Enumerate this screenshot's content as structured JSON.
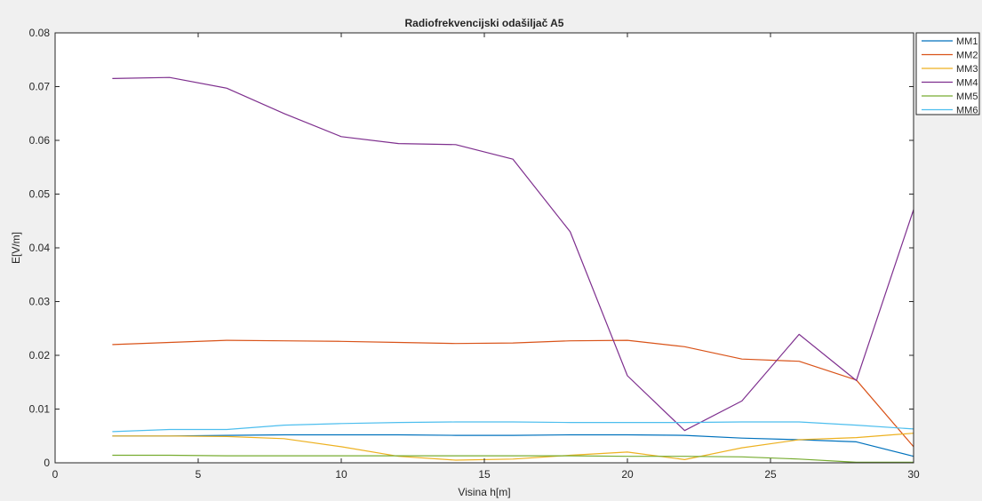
{
  "chart_data": {
    "type": "line",
    "title": "Radiofrekvencijski odašiljač A5",
    "xlabel": "Visina h[m]",
    "ylabel": "E[V/m]",
    "xlim": [
      0,
      30
    ],
    "ylim": [
      0,
      0.08
    ],
    "xticks": [
      0,
      5,
      10,
      15,
      20,
      25,
      30
    ],
    "xtick_labels": [
      "0",
      "5",
      "10",
      "15",
      "20",
      "25",
      "30"
    ],
    "yticks": [
      0,
      0.01,
      0.02,
      0.03,
      0.04,
      0.05,
      0.06,
      0.07,
      0.08
    ],
    "ytick_labels": [
      "0",
      "0.01",
      "0.02",
      "0.03",
      "0.04",
      "0.05",
      "0.06",
      "0.07",
      "0.08"
    ],
    "grid": false,
    "legend_position": "top-right, outside plot",
    "x": [
      2,
      4,
      6,
      8,
      10,
      12,
      14,
      16,
      18,
      20,
      22,
      24,
      26,
      28,
      30
    ],
    "series": [
      {
        "name": "MM1",
        "color": "#0072BD",
        "values": [
          0.005,
          0.005,
          0.0051,
          0.0052,
          0.0052,
          0.0052,
          0.0051,
          0.0051,
          0.0052,
          0.0052,
          0.0051,
          0.0046,
          0.0043,
          0.0039,
          0.0012
        ]
      },
      {
        "name": "MM2",
        "color": "#D95319",
        "values": [
          0.022,
          0.0224,
          0.0228,
          0.0227,
          0.0226,
          0.0224,
          0.0222,
          0.0223,
          0.0227,
          0.0228,
          0.0216,
          0.0193,
          0.0189,
          0.0154,
          0.003
        ]
      },
      {
        "name": "MM3",
        "color": "#EDB120",
        "values": [
          0.005,
          0.005,
          0.0049,
          0.0045,
          0.003,
          0.0012,
          0.0005,
          0.0007,
          0.0014,
          0.002,
          0.0006,
          0.0028,
          0.0043,
          0.0047,
          0.0055
        ]
      },
      {
        "name": "MM4",
        "color": "#7E2F8E",
        "values": [
          0.0715,
          0.0717,
          0.0697,
          0.065,
          0.0607,
          0.0594,
          0.0592,
          0.0565,
          0.043,
          0.0162,
          0.006,
          0.0115,
          0.0239,
          0.0153,
          0.0471
        ]
      },
      {
        "name": "MM5",
        "color": "#77AC30",
        "values": [
          0.0014,
          0.0014,
          0.0013,
          0.0013,
          0.0013,
          0.0013,
          0.0013,
          0.0013,
          0.0013,
          0.0012,
          0.0012,
          0.0011,
          0.0007,
          0.0001,
          0.0001
        ]
      },
      {
        "name": "MM6",
        "color": "#4DBEEE",
        "values": [
          0.0058,
          0.0062,
          0.0062,
          0.007,
          0.0073,
          0.0075,
          0.0076,
          0.0076,
          0.0075,
          0.0075,
          0.0075,
          0.0076,
          0.0076,
          0.007,
          0.0063
        ]
      }
    ]
  }
}
